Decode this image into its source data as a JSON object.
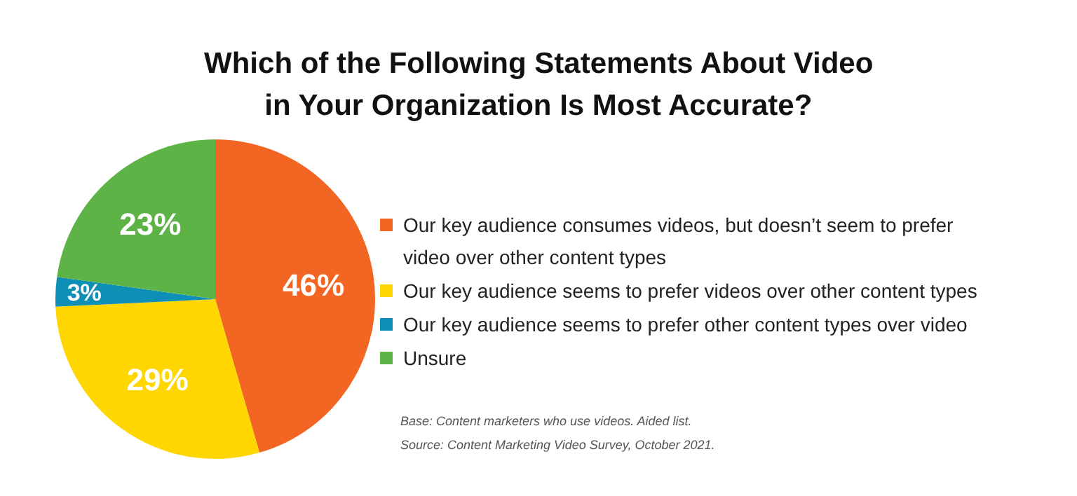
{
  "chart_data": {
    "type": "pie",
    "title": "Which of the Following Statements About Video in Your Organization Is Most Accurate?",
    "categories": [
      "Our key audience consumes videos, but doesn’t seem to prefer video over other content types",
      "Our key audience seems to prefer videos over other content types",
      "Our key audience seems to prefer other content types over video",
      "Unsure"
    ],
    "values": [
      46,
      29,
      3,
      23
    ],
    "value_labels": [
      "46%",
      "29%",
      "3%",
      "23%"
    ],
    "colors": [
      "#f26522",
      "#ffd600",
      "#0e8fb5",
      "#5db346"
    ],
    "legend": "right",
    "annotations": [
      "Base: Content marketers who use videos. Aided list.",
      "Source: Content Marketing Video Survey, October 2021."
    ]
  }
}
